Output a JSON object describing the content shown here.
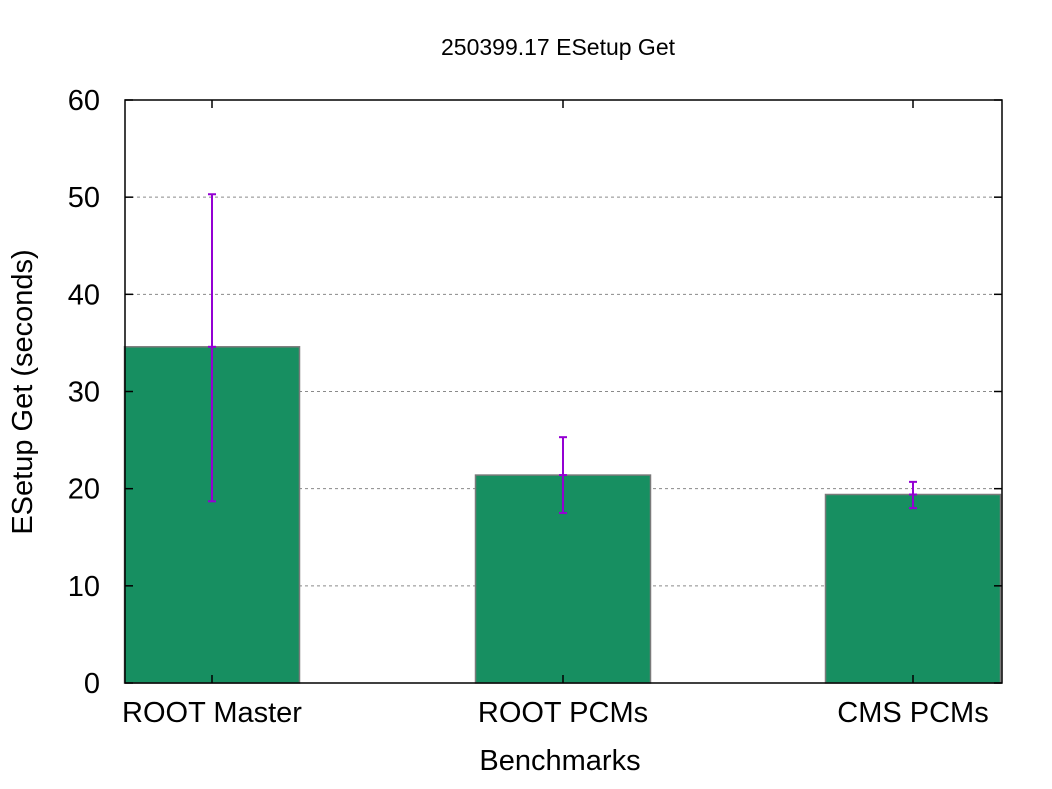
{
  "chart_data": {
    "type": "bar",
    "title": "250399.17 ESetup Get",
    "xlabel": "Benchmarks",
    "ylabel": "ESetup Get (seconds)",
    "ylim": [
      0,
      60
    ],
    "yticks": [
      "0",
      "10",
      "20",
      "30",
      "40",
      "50",
      "60"
    ],
    "grid": "horizontal dashed",
    "categories": [
      "ROOT Master",
      "ROOT PCMs",
      "CMS PCMs"
    ],
    "values": [
      34.6,
      21.4,
      19.4
    ],
    "error_low": [
      18.7,
      17.5,
      18.0
    ],
    "error_high": [
      50.3,
      25.3,
      20.7
    ],
    "colors": {
      "bar": "#178f61",
      "error_bar": "#9400d3",
      "grid": "#8a8a8a"
    }
  }
}
